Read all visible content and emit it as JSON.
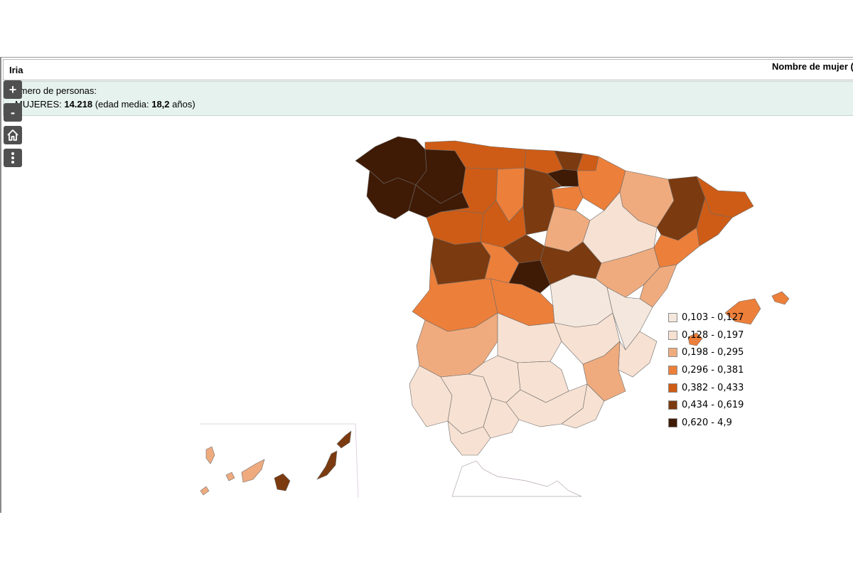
{
  "header": {
    "title": "Iria"
  },
  "info": {
    "label": "Número de personas:",
    "women_prefix": "MUJERES: ",
    "women_count": "14.218",
    "age_prefix": " (edad media: ",
    "age_value": "18,2",
    "age_suffix": " años)"
  },
  "map": {
    "title": "Nombre de mujer ("
  },
  "controls": {
    "zoom_in": "+",
    "zoom_out": "-"
  },
  "legend": [
    {
      "label": "0,103 - 0,127",
      "color": "#f4e7dd"
    },
    {
      "label": "0,128 - 0,197",
      "color": "#f7e1d2"
    },
    {
      "label": "0,198 - 0,295",
      "color": "#efab7e"
    },
    {
      "label": "0,296 - 0,381",
      "color": "#ec7f3a"
    },
    {
      "label": "0,382 - 0,433",
      "color": "#ce5c16"
    },
    {
      "label": "0,434 - 0,619",
      "color": "#7b3a0f"
    },
    {
      "label": "0,620 - 4,9",
      "color": "#3f1a05"
    }
  ]
}
